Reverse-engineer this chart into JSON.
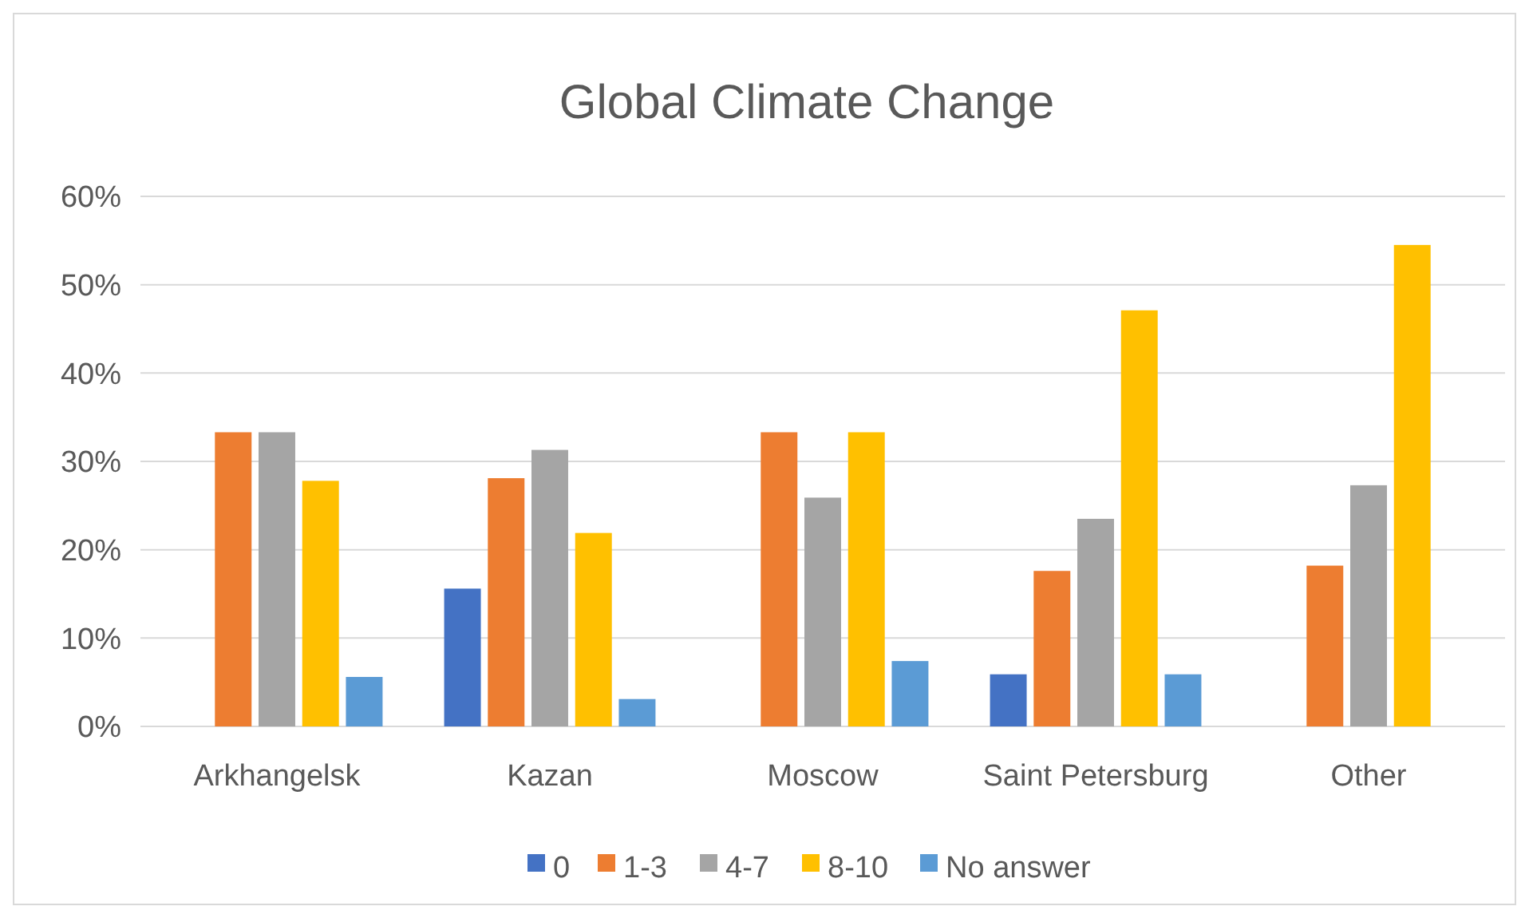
{
  "chart_data": {
    "type": "bar",
    "title": "Global Climate Change",
    "categories": [
      "Arkhangelsk",
      "Kazan",
      "Moscow",
      "Saint Petersburg",
      "Other"
    ],
    "series": [
      {
        "name": "0",
        "color": "#4472c4",
        "values": [
          null,
          15.6,
          null,
          5.9,
          null
        ]
      },
      {
        "name": "1-3",
        "color": "#ed7d31",
        "values": [
          33.3,
          28.1,
          33.3,
          17.6,
          18.2
        ]
      },
      {
        "name": "4-7",
        "color": "#a5a5a5",
        "values": [
          33.3,
          31.3,
          25.9,
          23.5,
          27.3
        ]
      },
      {
        "name": "8-10",
        "color": "#ffc000",
        "values": [
          27.8,
          21.9,
          33.3,
          47.1,
          54.5
        ]
      },
      {
        "name": "No answer",
        "color": "#5b9bd5",
        "values": [
          5.6,
          3.1,
          7.4,
          5.9,
          null
        ]
      }
    ],
    "ylim": [
      0,
      60
    ],
    "yticks": [
      {
        "value": 0,
        "label": "0%"
      },
      {
        "value": 10,
        "label": "10%"
      },
      {
        "value": 20,
        "label": "20%"
      },
      {
        "value": 30,
        "label": "30%"
      },
      {
        "value": 40,
        "label": "40%"
      },
      {
        "value": 50,
        "label": "50%"
      },
      {
        "value": 60,
        "label": "60%"
      }
    ],
    "grid": "y",
    "legend": "bottom"
  }
}
